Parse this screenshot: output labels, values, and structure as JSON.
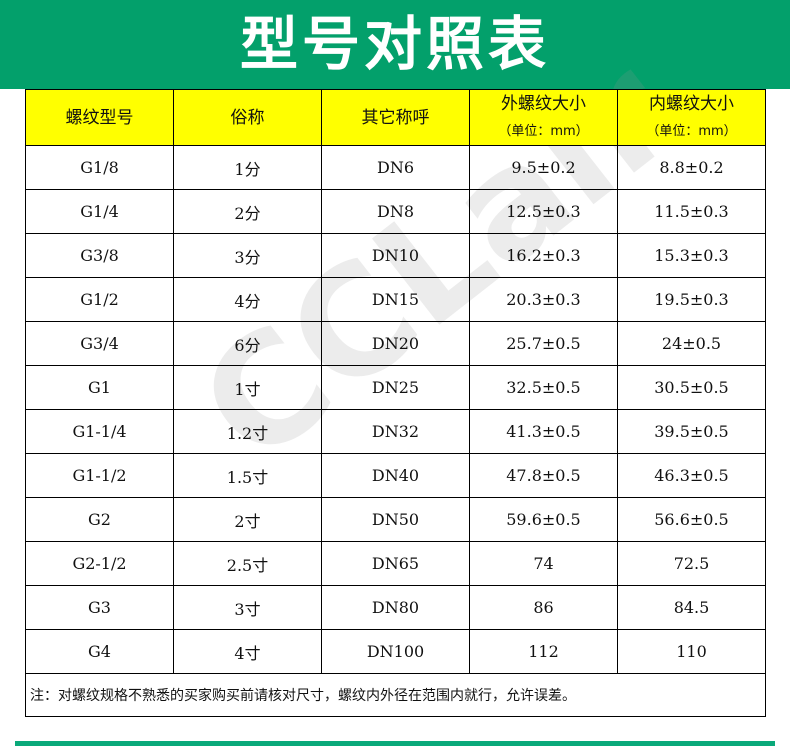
{
  "title": "型号对照表",
  "headers": [
    {
      "line1": "螺纹型号",
      "line2": ""
    },
    {
      "line1": "俗称",
      "line2": ""
    },
    {
      "line1": "其它称呼",
      "line2": ""
    },
    {
      "line1": "外螺纹大小",
      "line2": "（单位：mm）"
    },
    {
      "line1": "内螺纹大小",
      "line2": "（单位：mm）"
    }
  ],
  "rows": [
    [
      "G1/8",
      "1分",
      "DN6",
      "9.5±0.2",
      "8.8±0.2"
    ],
    [
      "G1/4",
      "2分",
      "DN8",
      "12.5±0.3",
      "11.5±0.3"
    ],
    [
      "G3/8",
      "3分",
      "DN10",
      "16.2±0.3",
      "15.3±0.3"
    ],
    [
      "G1/2",
      "4分",
      "DN15",
      "20.3±0.3",
      "19.5±0.3"
    ],
    [
      "G3/4",
      "6分",
      "DN20",
      "25.7±0.5",
      "24±0.5"
    ],
    [
      "G1",
      "1寸",
      "DN25",
      "32.5±0.5",
      "30.5±0.5"
    ],
    [
      "G1-1/4",
      "1.2寸",
      "DN32",
      "41.3±0.5",
      "39.5±0.5"
    ],
    [
      "G1-1/2",
      "1.5寸",
      "DN40",
      "47.8±0.5",
      "46.3±0.5"
    ],
    [
      "G2",
      "2寸",
      "DN50",
      "59.6±0.5",
      "56.6±0.5"
    ],
    [
      "G2-1/2",
      "2.5寸",
      "DN65",
      "74",
      "72.5"
    ],
    [
      "G3",
      "3寸",
      "DN80",
      "86",
      "84.5"
    ],
    [
      "G4",
      "4寸",
      "DN100",
      "112",
      "110"
    ]
  ],
  "note": "注：对螺纹规格不熟悉的买家购买前请核对尺寸，螺纹内外径在范围内就行，允许误差。",
  "watermark": "CCLair",
  "colors": {
    "banner": "#03a06b",
    "header_bg": "#ffff00"
  }
}
